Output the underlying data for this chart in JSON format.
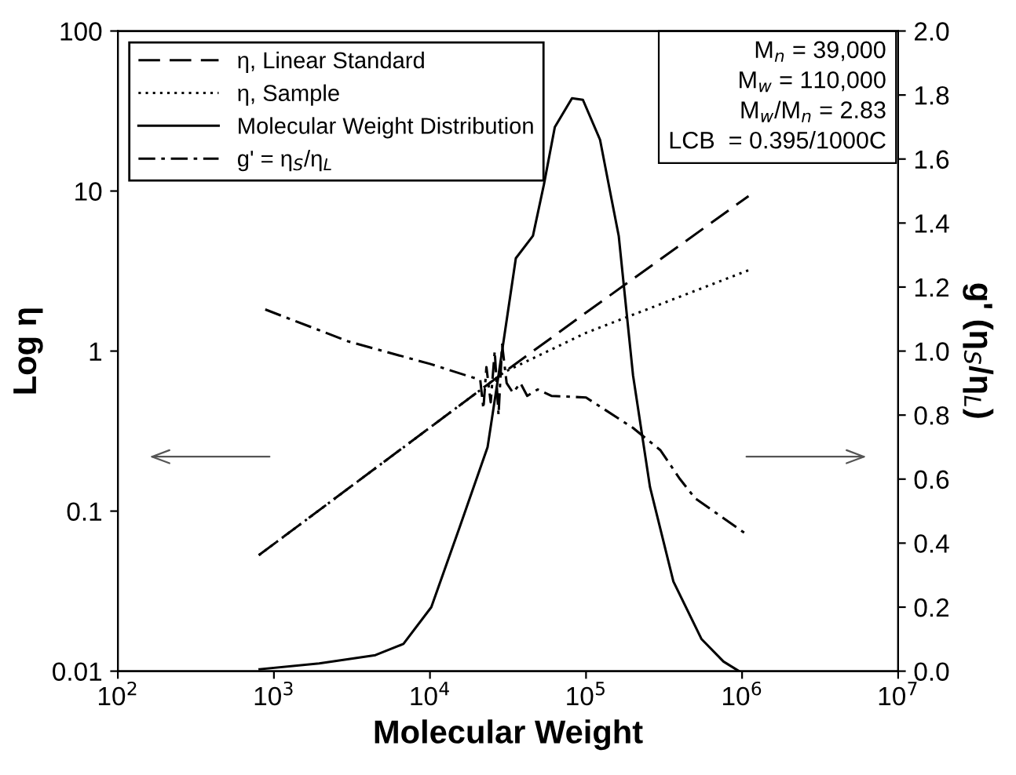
{
  "chart_data": {
    "type": "line",
    "xlabel": "Molecular Weight",
    "ylabel": "Log η",
    "y2label": "g' (η$_{S}$/η$_{L}$)",
    "log": "xy",
    "xlim": [
      100,
      10000000
    ],
    "xticks": [
      {
        "value": 100,
        "label": "10$^{2}$"
      },
      {
        "value": 1000,
        "label": "10$^{3}$"
      },
      {
        "value": 10000,
        "label": "10$^{4}$"
      },
      {
        "value": 100000,
        "label": "10$^{5}$"
      },
      {
        "value": 1000000,
        "label": "10$^{6}$"
      },
      {
        "value": 10000000,
        "label": "10$^{7}$"
      }
    ],
    "ylim": [
      0.01,
      100
    ],
    "yticks": [
      0.01,
      0.1,
      1,
      10,
      100
    ],
    "y2lim": [
      0,
      2.0
    ],
    "y2ticks": [
      {
        "value": 0,
        "label": "0.0"
      },
      {
        "value": 0.2,
        "label": "0.2"
      },
      {
        "value": 0.4,
        "label": "0.4"
      },
      {
        "value": 0.6,
        "label": "0.6"
      },
      {
        "value": 0.8,
        "label": "0.8"
      },
      {
        "value": 1.0,
        "label": "1.0"
      },
      {
        "value": 1.2,
        "label": "1.2"
      },
      {
        "value": 1.4,
        "label": "1.4"
      },
      {
        "value": 1.6,
        "label": "1.6"
      },
      {
        "value": 1.8,
        "label": "1.8"
      },
      {
        "value": 2.0,
        "label": "2.0"
      }
    ],
    "grid": false,
    "legend": "top left",
    "marker": "none",
    "annotations": [
      "M$_{n}$ = 39,000",
      "M$_{w}$ = 110,000",
      "M$_{w}$/M$_{n}$ = 2.83",
      "LCB  = 0.395/1000C"
    ],
    "series": [
      {
        "name": "η, Linear Standard",
        "color": "#000000",
        "line_style": "dashed",
        "x": [
          800,
          30000,
          100000,
          1100000
        ],
        "values": [
          0.053,
          0.74,
          1.74,
          9.3
        ]
      },
      {
        "name": "η, Sample",
        "color": "#000000",
        "line_style": "dotted",
        "x": [
          800,
          30000,
          100000,
          1100000
        ],
        "values": [
          0.053,
          0.74,
          1.3,
          3.2
        ]
      },
      {
        "name": "Molecular Weight Distribution",
        "color": "#000000",
        "line_style": "solid",
        "axis": "y2",
        "x": [
          810,
          1950,
          4470,
          6760,
          10200,
          15500,
          23400,
          27500,
          35500,
          45700,
          53700,
          63100,
          81300,
          95500,
          123000,
          145000,
          162000,
          200000,
          257000,
          363000,
          550000,
          760000,
          955000
        ],
        "values": [
          0.006,
          0.024,
          0.05,
          0.085,
          0.2,
          0.45,
          0.7,
          0.925,
          1.29,
          1.36,
          1.52,
          1.7,
          1.79,
          1.785,
          1.66,
          1.48,
          1.36,
          0.925,
          0.575,
          0.28,
          0.1,
          0.03,
          0.0
        ]
      },
      {
        "name": "g' = η$_{S}$/η$_{L}$",
        "color": "#000000",
        "line_style": "dashdot",
        "axis": "y2",
        "x": [
          880,
          3000,
          10000,
          21000,
          22000,
          23000,
          24500,
          26000,
          27500,
          29000,
          31000,
          34000,
          38000,
          42000,
          49000,
          60000,
          100000,
          200000,
          300000,
          400000,
          500000,
          1050000
        ],
        "values": [
          1.13,
          1.03,
          0.96,
          0.91,
          0.82,
          0.95,
          0.84,
          1.0,
          0.8,
          1.02,
          0.9,
          0.87,
          0.9,
          0.86,
          0.88,
          0.86,
          0.855,
          0.76,
          0.69,
          0.6,
          0.54,
          0.43
        ]
      }
    ]
  }
}
